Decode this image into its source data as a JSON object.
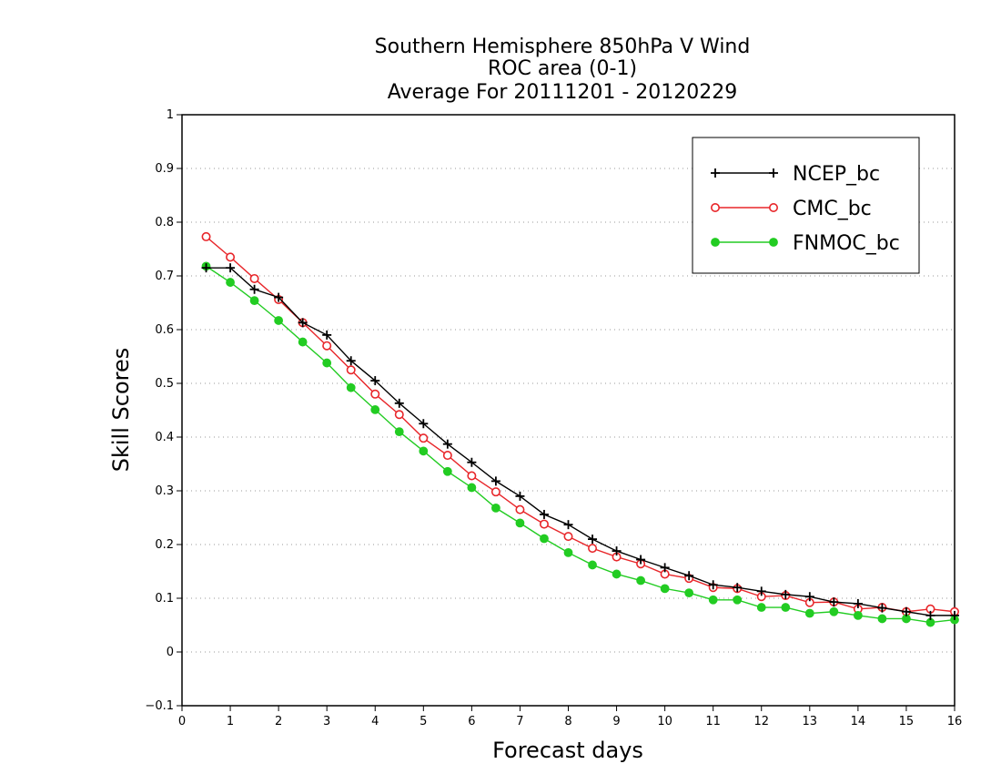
{
  "chart_data": {
    "type": "line",
    "title": [
      "Southern Hemisphere 850hPa V Wind",
      "ROC area (0-1)",
      "Average For 20111201 - 20120229"
    ],
    "xlabel": "Forecast days",
    "ylabel": "Skill Scores",
    "xlim": [
      0,
      16
    ],
    "ylim": [
      -0.1,
      1
    ],
    "x_ticks": [
      "0",
      "1",
      "2",
      "3",
      "4",
      "5",
      "6",
      "7",
      "8",
      "9",
      "10",
      "11",
      "12",
      "13",
      "14",
      "15",
      "16"
    ],
    "y_ticks": [
      "−0.1",
      "0",
      "0.1",
      "0.2",
      "0.3",
      "0.4",
      "0.5",
      "0.6",
      "0.7",
      "0.8",
      "0.9",
      "1"
    ],
    "grid": "horizontal-dotted",
    "legend_position": "top-right",
    "x": [
      0.5,
      1,
      1.5,
      2,
      2.5,
      3,
      3.5,
      4,
      4.5,
      5,
      5.5,
      6,
      6.5,
      7,
      7.5,
      8,
      8.5,
      9,
      9.5,
      10,
      10.5,
      11,
      11.5,
      12,
      12.5,
      13,
      13.5,
      14,
      14.5,
      15,
      15.5,
      16
    ],
    "series": [
      {
        "name": "NCEP_bc",
        "color": "#000000",
        "marker": "plus",
        "values": [
          0.715,
          0.715,
          0.675,
          0.66,
          0.613,
          0.59,
          0.542,
          0.505,
          0.463,
          0.425,
          0.387,
          0.353,
          0.318,
          0.29,
          0.256,
          0.237,
          0.21,
          0.188,
          0.172,
          0.157,
          0.142,
          0.125,
          0.12,
          0.113,
          0.107,
          0.103,
          0.093,
          0.09,
          0.082,
          0.075,
          0.068,
          0.068
        ]
      },
      {
        "name": "CMC_bc",
        "color": "#e8262a",
        "marker": "open-circle",
        "values": [
          0.773,
          0.735,
          0.695,
          0.656,
          0.613,
          0.57,
          0.525,
          0.48,
          0.442,
          0.398,
          0.366,
          0.328,
          0.298,
          0.265,
          0.238,
          0.215,
          0.193,
          0.177,
          0.164,
          0.145,
          0.137,
          0.12,
          0.118,
          0.103,
          0.105,
          0.092,
          0.093,
          0.08,
          0.083,
          0.075,
          0.08,
          0.075
        ]
      },
      {
        "name": "FNMOC_bc",
        "color": "#22cc22",
        "marker": "filled-circle",
        "values": [
          0.718,
          0.688,
          0.654,
          0.617,
          0.577,
          0.538,
          0.492,
          0.451,
          0.41,
          0.374,
          0.336,
          0.306,
          0.268,
          0.24,
          0.211,
          0.185,
          0.162,
          0.145,
          0.133,
          0.118,
          0.11,
          0.097,
          0.097,
          0.083,
          0.083,
          0.072,
          0.075,
          0.068,
          0.062,
          0.062,
          0.055,
          0.06
        ]
      }
    ]
  }
}
